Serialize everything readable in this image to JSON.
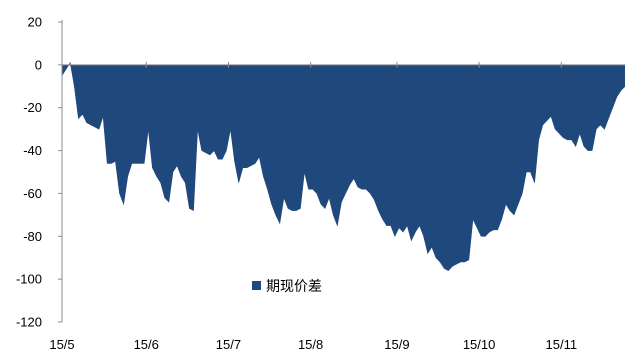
{
  "chart_data": {
    "type": "area",
    "title": "",
    "xlabel": "",
    "ylabel": "",
    "ylim": [
      -120,
      20
    ],
    "y_ticks": [
      20,
      0,
      -20,
      -40,
      -60,
      -80,
      -100,
      -120
    ],
    "x_tick_labels": [
      "15/5",
      "15/6",
      "15/7",
      "15/8",
      "15/9",
      "15/10",
      "15/11"
    ],
    "x_index_range": [
      0,
      137
    ],
    "x_tick_positions": [
      0,
      20.5,
      40.5,
      60.5,
      81.5,
      101.5,
      121.5
    ],
    "grid": false,
    "legend_position": "lower-center",
    "series": [
      {
        "name": "期现价差",
        "color": "#1f497d",
        "values": [
          -5,
          -2,
          1,
          -10,
          -25,
          -23,
          -27,
          -28,
          -29,
          -30,
          -24,
          -46,
          -46,
          -45,
          -60,
          -65,
          -52,
          -46,
          -46,
          -46,
          -46,
          -30,
          -48,
          -52,
          -55,
          -62,
          -64,
          -50,
          -47,
          -52,
          -55,
          -67,
          -68,
          -30,
          -40,
          -41,
          -42,
          -40,
          -44,
          -44,
          -40,
          -30,
          -45,
          -55,
          -48,
          -48,
          -47,
          -46,
          -43,
          -52,
          -58,
          -65,
          -70,
          -74,
          -62,
          -67,
          -68,
          -68,
          -67,
          -50,
          -58,
          -58,
          -60,
          -65,
          -67,
          -62,
          -70,
          -75,
          -64,
          -60,
          -56,
          -53,
          -57,
          -58,
          -58,
          -60,
          -63,
          -68,
          -72,
          -75,
          -75,
          -80,
          -76,
          -78,
          -75,
          -82,
          -78,
          -75,
          -80,
          -88,
          -85,
          -90,
          -92,
          -95,
          -96,
          -94,
          -93,
          -92,
          -92,
          -91,
          -72,
          -76,
          -80,
          -80,
          -78,
          -77,
          -77,
          -72,
          -65,
          -68,
          -70,
          -65,
          -60,
          -50,
          -50,
          -55,
          -35,
          -28,
          -26,
          -24,
          -30,
          -32,
          -34,
          -35,
          -35,
          -38,
          -32,
          -38,
          -40,
          -40,
          -30,
          -28,
          -30,
          -25,
          -20,
          -15,
          -12,
          -10,
          -8,
          -5,
          0,
          -3,
          -1
        ]
      }
    ]
  }
}
